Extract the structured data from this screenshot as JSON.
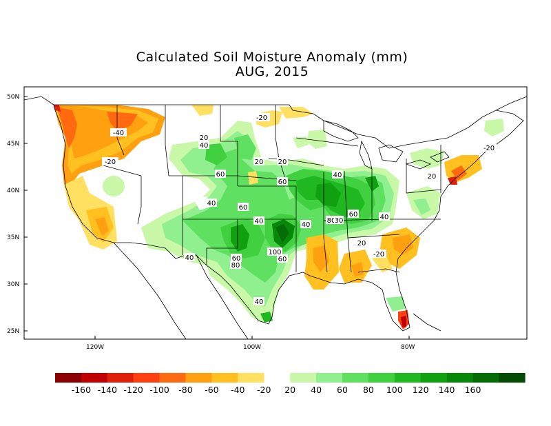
{
  "title": "Calculated Soil Moisture Anomaly (mm)",
  "subtitle": "AUG, 2015",
  "lat_ticks": [
    "50N",
    "45N",
    "40N",
    "35N",
    "30N",
    "25N"
  ],
  "lon_ticks": [
    "120W",
    "100W",
    "80W"
  ],
  "contour_labels": [
    "-20",
    "-40",
    "-20",
    "20",
    "40",
    "60",
    "20",
    "20",
    "60",
    "40",
    "60",
    "40",
    "60",
    "40",
    "40",
    "40",
    "80",
    "60",
    "100",
    "80",
    "30",
    "60",
    "40",
    "20",
    "-20",
    "20",
    "-20",
    "20",
    "40"
  ],
  "legend": {
    "colors": [
      "#8b0000",
      "#c00000",
      "#e0200a",
      "#ff4010",
      "#ff6a10",
      "#ffa010",
      "#ffc020",
      "#ffe060",
      "#c8f8a8",
      "#90f090",
      "#60e060",
      "#40d040",
      "#20b820",
      "#10a010",
      "#088808",
      "#066c06",
      "#044c04"
    ],
    "labels": [
      "-160",
      "-140",
      "-120",
      "-100",
      "-80",
      "-60",
      "-40",
      "-20",
      "20",
      "40",
      "60",
      "80",
      "100",
      "120",
      "140",
      "160"
    ]
  }
}
